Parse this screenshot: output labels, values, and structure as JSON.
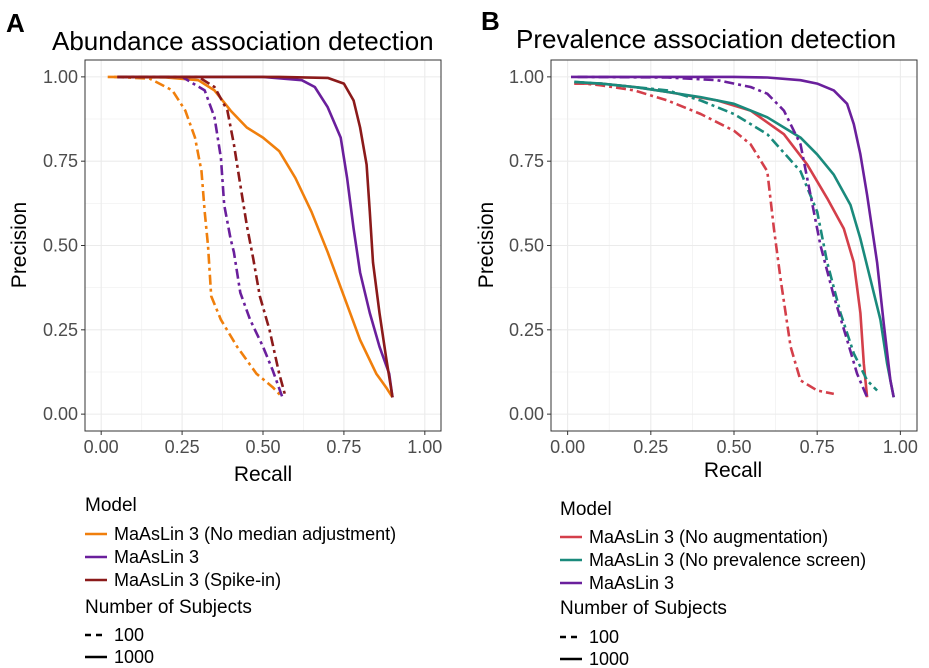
{
  "panels": [
    {
      "letter": "A",
      "title": "Abundance association detection"
    },
    {
      "letter": "B",
      "title": "Prevalence association detection"
    }
  ],
  "legend_titles": {
    "model": "Model",
    "subjects": "Number of Subjects"
  },
  "linetype_labels": [
    "100",
    "1000"
  ],
  "chart_data": [
    {
      "type": "line",
      "title": "Abundance association detection",
      "xlabel": "Recall",
      "ylabel": "Precision",
      "xlim": [
        -0.05,
        1.05
      ],
      "ylim": [
        -0.05,
        1.05
      ],
      "xticks": [
        0,
        0.25,
        0.5,
        0.75,
        1
      ],
      "xtick_labels": [
        "0.00",
        "0.25",
        "0.50",
        "0.75",
        "1.00"
      ],
      "yticks": [
        0,
        0.25,
        0.5,
        0.75,
        1
      ],
      "ytick_labels": [
        "0.00",
        "0.25",
        "0.50",
        "0.75",
        "1.00"
      ],
      "grid": true,
      "legend_models": [
        "MaAsLin 3 (No median adjustment)",
        "MaAsLin 3",
        "MaAsLin 3 (Spike-in)"
      ],
      "series": [
        {
          "model": "MaAsLin 3 (No median adjustment)",
          "subjects": "100",
          "color": "#f07f0c",
          "dashed": true,
          "points": [
            [
              0.04,
              1
            ],
            [
              0.15,
              0.995
            ],
            [
              0.22,
              0.96
            ],
            [
              0.26,
              0.9
            ],
            [
              0.29,
              0.82
            ],
            [
              0.31,
              0.72
            ],
            [
              0.32,
              0.6
            ],
            [
              0.33,
              0.5
            ],
            [
              0.34,
              0.35
            ],
            [
              0.37,
              0.28
            ],
            [
              0.42,
              0.2
            ],
            [
              0.48,
              0.12
            ],
            [
              0.53,
              0.08
            ],
            [
              0.56,
              0.05
            ]
          ]
        },
        {
          "model": "MaAsLin 3 (No median adjustment)",
          "subjects": "1000",
          "color": "#f07f0c",
          "dashed": false,
          "points": [
            [
              0.02,
              1
            ],
            [
              0.2,
              0.998
            ],
            [
              0.3,
              0.99
            ],
            [
              0.35,
              0.96
            ],
            [
              0.4,
              0.9
            ],
            [
              0.45,
              0.85
            ],
            [
              0.5,
              0.82
            ],
            [
              0.55,
              0.78
            ],
            [
              0.6,
              0.7
            ],
            [
              0.65,
              0.6
            ],
            [
              0.7,
              0.48
            ],
            [
              0.75,
              0.35
            ],
            [
              0.8,
              0.22
            ],
            [
              0.85,
              0.12
            ],
            [
              0.88,
              0.08
            ],
            [
              0.9,
              0.05
            ]
          ]
        },
        {
          "model": "MaAsLin 3",
          "subjects": "100",
          "color": "#6a1f9c",
          "dashed": true,
          "points": [
            [
              0.05,
              1
            ],
            [
              0.25,
              1
            ],
            [
              0.32,
              0.96
            ],
            [
              0.35,
              0.88
            ],
            [
              0.37,
              0.76
            ],
            [
              0.38,
              0.62
            ],
            [
              0.4,
              0.52
            ],
            [
              0.41,
              0.48
            ],
            [
              0.43,
              0.36
            ],
            [
              0.46,
              0.28
            ],
            [
              0.5,
              0.2
            ],
            [
              0.53,
              0.13
            ],
            [
              0.56,
              0.05
            ]
          ]
        },
        {
          "model": "MaAsLin 3",
          "subjects": "1000",
          "color": "#6a1f9c",
          "dashed": false,
          "points": [
            [
              0.05,
              1
            ],
            [
              0.5,
              1
            ],
            [
              0.62,
              0.99
            ],
            [
              0.66,
              0.97
            ],
            [
              0.7,
              0.91
            ],
            [
              0.74,
              0.82
            ],
            [
              0.76,
              0.7
            ],
            [
              0.78,
              0.55
            ],
            [
              0.8,
              0.42
            ],
            [
              0.83,
              0.3
            ],
            [
              0.86,
              0.2
            ],
            [
              0.89,
              0.12
            ],
            [
              0.9,
              0.05
            ]
          ]
        },
        {
          "model": "MaAsLin 3 (Spike-in)",
          "subjects": "100",
          "color": "#8b1a1a",
          "dashed": true,
          "points": [
            [
              0.05,
              1
            ],
            [
              0.3,
              1
            ],
            [
              0.35,
              0.97
            ],
            [
              0.39,
              0.9
            ],
            [
              0.41,
              0.8
            ],
            [
              0.43,
              0.68
            ],
            [
              0.45,
              0.56
            ],
            [
              0.47,
              0.46
            ],
            [
              0.49,
              0.35
            ],
            [
              0.52,
              0.25
            ],
            [
              0.55,
              0.12
            ],
            [
              0.57,
              0.05
            ]
          ]
        },
        {
          "model": "MaAsLin 3 (Spike-in)",
          "subjects": "1000",
          "color": "#8b1a1a",
          "dashed": false,
          "points": [
            [
              0.05,
              1
            ],
            [
              0.55,
              1
            ],
            [
              0.7,
              0.997
            ],
            [
              0.75,
              0.98
            ],
            [
              0.78,
              0.93
            ],
            [
              0.8,
              0.85
            ],
            [
              0.82,
              0.74
            ],
            [
              0.83,
              0.6
            ],
            [
              0.84,
              0.45
            ],
            [
              0.86,
              0.3
            ],
            [
              0.88,
              0.17
            ],
            [
              0.9,
              0.05
            ]
          ]
        }
      ]
    },
    {
      "type": "line",
      "title": "Prevalence association detection",
      "xlabel": "Recall",
      "ylabel": "Precision",
      "xlim": [
        -0.05,
        1.05
      ],
      "ylim": [
        -0.05,
        1.05
      ],
      "xticks": [
        0,
        0.25,
        0.5,
        0.75,
        1
      ],
      "xtick_labels": [
        "0.00",
        "0.25",
        "0.50",
        "0.75",
        "1.00"
      ],
      "yticks": [
        0,
        0.25,
        0.5,
        0.75,
        1
      ],
      "ytick_labels": [
        "0.00",
        "0.25",
        "0.50",
        "0.75",
        "1.00"
      ],
      "grid": true,
      "legend_models": [
        "MaAsLin 3 (No augmentation)",
        "MaAsLin 3 (No prevalence screen)",
        "MaAsLin 3"
      ],
      "series": [
        {
          "model": "MaAsLin 3 (No augmentation)",
          "subjects": "100",
          "color": "#d43f4a",
          "dashed": true,
          "points": [
            [
              0.02,
              0.98
            ],
            [
              0.05,
              0.98
            ],
            [
              0.1,
              0.975
            ],
            [
              0.2,
              0.96
            ],
            [
              0.3,
              0.93
            ],
            [
              0.4,
              0.89
            ],
            [
              0.5,
              0.84
            ],
            [
              0.55,
              0.8
            ],
            [
              0.6,
              0.72
            ],
            [
              0.62,
              0.55
            ],
            [
              0.64,
              0.4
            ],
            [
              0.67,
              0.2
            ],
            [
              0.7,
              0.1
            ],
            [
              0.75,
              0.07
            ],
            [
              0.8,
              0.06
            ]
          ]
        },
        {
          "model": "MaAsLin 3 (No augmentation)",
          "subjects": "1000",
          "color": "#d43f4a",
          "dashed": false,
          "points": [
            [
              0.02,
              0.98
            ],
            [
              0.1,
              0.98
            ],
            [
              0.2,
              0.97
            ],
            [
              0.3,
              0.955
            ],
            [
              0.45,
              0.93
            ],
            [
              0.55,
              0.9
            ],
            [
              0.65,
              0.83
            ],
            [
              0.72,
              0.74
            ],
            [
              0.78,
              0.64
            ],
            [
              0.83,
              0.55
            ],
            [
              0.86,
              0.45
            ],
            [
              0.88,
              0.3
            ],
            [
              0.89,
              0.15
            ],
            [
              0.9,
              0.05
            ]
          ]
        },
        {
          "model": "MaAsLin 3 (No prevalence screen)",
          "subjects": "100",
          "color": "#1a8a7c",
          "dashed": true,
          "points": [
            [
              0.02,
              0.985
            ],
            [
              0.1,
              0.98
            ],
            [
              0.2,
              0.97
            ],
            [
              0.3,
              0.96
            ],
            [
              0.4,
              0.93
            ],
            [
              0.5,
              0.89
            ],
            [
              0.6,
              0.83
            ],
            [
              0.7,
              0.72
            ],
            [
              0.75,
              0.6
            ],
            [
              0.78,
              0.45
            ],
            [
              0.82,
              0.3
            ],
            [
              0.86,
              0.18
            ],
            [
              0.9,
              0.1
            ],
            [
              0.93,
              0.07
            ]
          ]
        },
        {
          "model": "MaAsLin 3 (No prevalence screen)",
          "subjects": "1000",
          "color": "#1a8a7c",
          "dashed": false,
          "points": [
            [
              0.02,
              0.985
            ],
            [
              0.1,
              0.98
            ],
            [
              0.2,
              0.97
            ],
            [
              0.3,
              0.955
            ],
            [
              0.4,
              0.94
            ],
            [
              0.5,
              0.92
            ],
            [
              0.6,
              0.88
            ],
            [
              0.7,
              0.82
            ],
            [
              0.75,
              0.77
            ],
            [
              0.8,
              0.71
            ],
            [
              0.85,
              0.62
            ],
            [
              0.88,
              0.52
            ],
            [
              0.91,
              0.4
            ],
            [
              0.94,
              0.28
            ],
            [
              0.96,
              0.15
            ],
            [
              0.98,
              0.05
            ]
          ]
        },
        {
          "model": "MaAsLin 3",
          "subjects": "100",
          "color": "#6a1f9c",
          "dashed": true,
          "points": [
            [
              0.03,
              1
            ],
            [
              0.3,
              0.998
            ],
            [
              0.45,
              0.99
            ],
            [
              0.55,
              0.97
            ],
            [
              0.6,
              0.95
            ],
            [
              0.65,
              0.9
            ],
            [
              0.7,
              0.8
            ],
            [
              0.73,
              0.65
            ],
            [
              0.76,
              0.5
            ],
            [
              0.8,
              0.35
            ],
            [
              0.84,
              0.22
            ],
            [
              0.87,
              0.12
            ],
            [
              0.9,
              0.05
            ]
          ]
        },
        {
          "model": "MaAsLin 3",
          "subjects": "1000",
          "color": "#6a1f9c",
          "dashed": false,
          "points": [
            [
              0.01,
              1
            ],
            [
              0.3,
              1
            ],
            [
              0.5,
              1
            ],
            [
              0.6,
              0.998
            ],
            [
              0.7,
              0.99
            ],
            [
              0.75,
              0.98
            ],
            [
              0.8,
              0.96
            ],
            [
              0.84,
              0.92
            ],
            [
              0.86,
              0.86
            ],
            [
              0.88,
              0.77
            ],
            [
              0.9,
              0.65
            ],
            [
              0.93,
              0.45
            ],
            [
              0.95,
              0.27
            ],
            [
              0.97,
              0.1
            ],
            [
              0.98,
              0.05
            ]
          ]
        }
      ]
    }
  ]
}
